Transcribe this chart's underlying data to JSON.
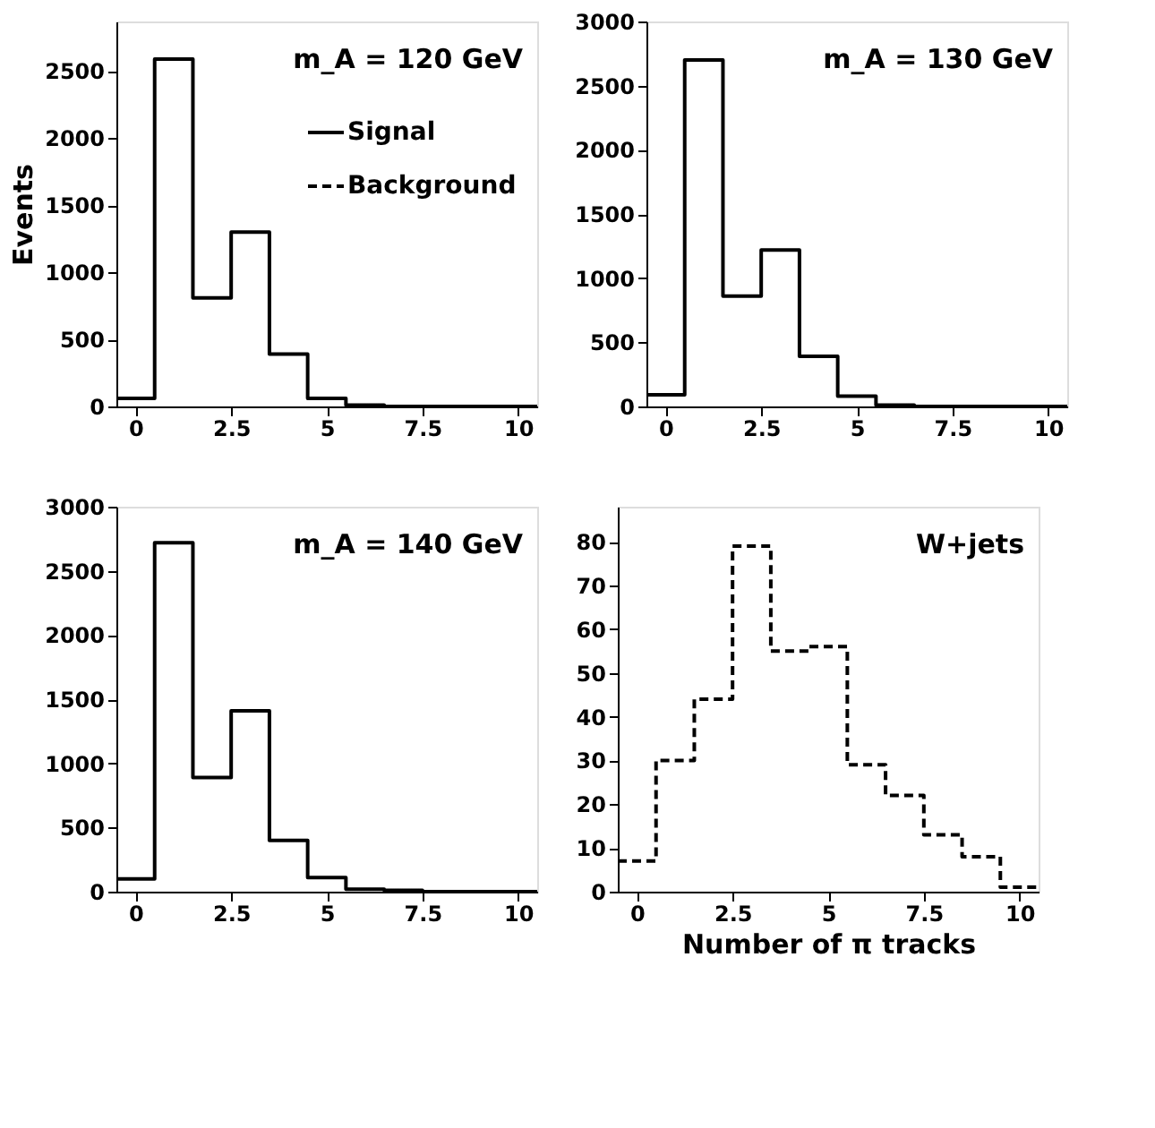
{
  "chart_data": [
    {
      "type": "histogram",
      "ylabel": "Events",
      "annotations": [
        "m_A = 120 GeV"
      ],
      "bins": [
        -0.5,
        0.5,
        1.5,
        2.5,
        3.5,
        4.5,
        5.5,
        6.5,
        7.5,
        8.5,
        9.5,
        10.5
      ],
      "series": [
        {
          "name": "Signal",
          "color": "#000000",
          "line_style": "solid",
          "values": [
            60,
            2590,
            810,
            1300,
            390,
            60,
            10,
            0,
            0,
            0,
            0
          ]
        }
      ],
      "xlim": [
        -0.5,
        10.5
      ],
      "xticks": [
        0,
        2.5,
        5,
        7.5,
        10
      ],
      "ylim": [
        0,
        2870
      ],
      "yticks": [
        0,
        500,
        1000,
        1500,
        2000,
        2500
      ],
      "legend": "top right"
    },
    {
      "type": "histogram",
      "annotations": [
        "m_A = 130 GeV"
      ],
      "bins": [
        -0.5,
        0.5,
        1.5,
        2.5,
        3.5,
        4.5,
        5.5,
        6.5,
        7.5,
        8.5,
        9.5,
        10.5
      ],
      "series": [
        {
          "color": "#000000",
          "line_style": "solid",
          "values": [
            90,
            2700,
            860,
            1220,
            390,
            80,
            10,
            0,
            0,
            0,
            0
          ]
        }
      ],
      "xlim": [
        -0.5,
        10.5
      ],
      "xticks": [
        0,
        2.5,
        5,
        7.5,
        10
      ],
      "ylim": [
        0,
        3000
      ],
      "yticks": [
        0,
        500,
        1000,
        1500,
        2000,
        2500,
        3000
      ]
    },
    {
      "type": "histogram",
      "annotations": [
        "m_A = 140 GeV"
      ],
      "bins": [
        -0.5,
        0.5,
        1.5,
        2.5,
        3.5,
        4.5,
        5.5,
        6.5,
        7.5,
        8.5,
        9.5,
        10.5
      ],
      "series": [
        {
          "color": "#000000",
          "line_style": "solid",
          "values": [
            100,
            2720,
            890,
            1410,
            400,
            110,
            20,
            10,
            0,
            0,
            0
          ]
        }
      ],
      "xlim": [
        -0.5,
        10.5
      ],
      "xticks": [
        0,
        2.5,
        5,
        7.5,
        10
      ],
      "ylim": [
        0,
        3000
      ],
      "yticks": [
        0,
        500,
        1000,
        1500,
        2000,
        2500,
        3000
      ]
    },
    {
      "type": "histogram",
      "xlabel": "Number of π tracks",
      "annotations": [
        "W+jets"
      ],
      "bins": [
        -0.5,
        0.5,
        1.5,
        2.5,
        3.5,
        4.5,
        5.5,
        6.5,
        7.5,
        8.5,
        9.5,
        10.5
      ],
      "series": [
        {
          "name": "Background",
          "color": "#000000",
          "line_style": "dashed",
          "values": [
            7,
            30,
            44,
            79,
            55,
            56,
            29,
            22,
            13,
            8,
            1
          ]
        }
      ],
      "xlim": [
        -0.5,
        10.5
      ],
      "xticks": [
        0,
        2.5,
        5,
        7.5,
        10
      ],
      "ylim": [
        0,
        88
      ],
      "yticks": [
        0,
        10,
        20,
        30,
        40,
        50,
        60,
        70,
        80
      ]
    }
  ]
}
